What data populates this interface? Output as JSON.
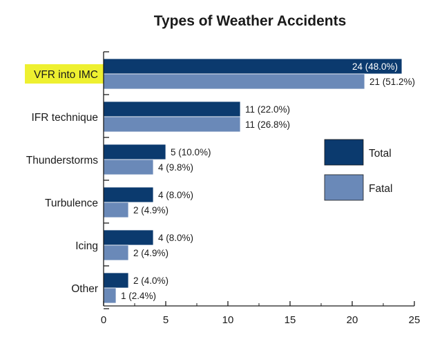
{
  "chart_data": {
    "type": "bar",
    "orientation": "horizontal",
    "title": "Types of Weather Accidents",
    "xlabel": "",
    "ylabel": "",
    "xlim": [
      0,
      25
    ],
    "x_ticks": [
      0,
      5,
      10,
      15,
      20,
      25
    ],
    "categories": [
      "VFR into IMC",
      "IFR technique",
      "Thunderstorms",
      "Turbulence",
      "Icing",
      "Other"
    ],
    "highlighted_category": "VFR into IMC",
    "series": [
      {
        "name": "Total",
        "color": "#0b3a6e",
        "values": [
          24,
          11,
          5,
          4,
          4,
          2
        ],
        "labels": [
          "24 (48.0%)",
          "11 (22.0%)",
          "5 (10.0%)",
          "4 (8.0%)",
          "4 (8.0%)",
          "2 (4.0%)"
        ]
      },
      {
        "name": "Fatal",
        "color": "#6a89b8",
        "values": [
          21,
          11,
          4,
          2,
          2,
          1
        ],
        "labels": [
          "21 (51.2%)",
          "11 (26.8%)",
          "4 (9.8%)",
          "2 (4.9%)",
          "2 (4.9%)",
          "1 (2.4%)"
        ]
      }
    ],
    "legend": "right",
    "grid": false,
    "highlight_color": "#eef030"
  }
}
